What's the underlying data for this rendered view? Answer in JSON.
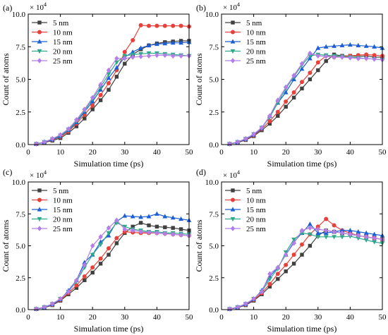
{
  "figure": {
    "multiplier_label": "× 10",
    "multiplier_exponent": "4"
  },
  "chart_data": [
    {
      "panel": "(a)",
      "type": "line",
      "xlabel": "Simulation time (ps)",
      "ylabel": "Count of atoms",
      "xlim": [
        0,
        50
      ],
      "ylim": [
        0,
        10
      ],
      "x_ticks": [
        0,
        10,
        20,
        30,
        40,
        50
      ],
      "y_ticks": [
        "0.0",
        "2.5",
        "5.0",
        "7.5",
        "10.0"
      ],
      "x": [
        2.5,
        5,
        7.5,
        10,
        12.5,
        15,
        17.5,
        20,
        22.5,
        25,
        27.5,
        30,
        32.5,
        35,
        37.5,
        40,
        42.5,
        45,
        47.5,
        50
      ],
      "legend_position": "upper-left",
      "series": [
        {
          "name": "5 nm",
          "color": "#404040",
          "marker": "square",
          "values": [
            0.05,
            0.15,
            0.3,
            0.5,
            0.9,
            1.4,
            2.0,
            2.7,
            3.4,
            4.2,
            5.2,
            6.2,
            6.9,
            7.3,
            7.6,
            7.75,
            7.85,
            7.9,
            7.95,
            7.95
          ]
        },
        {
          "name": "10 nm",
          "color": "#e8403a",
          "marker": "circle",
          "values": [
            0.05,
            0.17,
            0.35,
            0.6,
            1.0,
            1.6,
            2.3,
            3.0,
            3.8,
            4.7,
            5.7,
            7.1,
            8.0,
            9.15,
            9.1,
            9.1,
            9.1,
            9.1,
            9.1,
            9.05
          ]
        },
        {
          "name": "15 nm",
          "color": "#1c5fd4",
          "marker": "triangle-up",
          "values": [
            0.05,
            0.18,
            0.38,
            0.65,
            1.1,
            1.7,
            2.5,
            3.3,
            4.2,
            5.1,
            5.9,
            6.7,
            7.1,
            7.4,
            7.6,
            7.7,
            7.75,
            7.8,
            7.8,
            7.85
          ]
        },
        {
          "name": "20 nm",
          "color": "#2ea88a",
          "marker": "triangle-down",
          "values": [
            0.05,
            0.2,
            0.42,
            0.7,
            1.15,
            1.8,
            2.6,
            3.5,
            4.4,
            5.4,
            6.3,
            6.8,
            6.9,
            6.95,
            7.0,
            7.0,
            6.95,
            6.9,
            6.85,
            6.8
          ]
        },
        {
          "name": "25 nm",
          "color": "#b47ee6",
          "marker": "diamond",
          "values": [
            0.05,
            0.2,
            0.45,
            0.75,
            1.2,
            1.9,
            2.7,
            3.6,
            4.6,
            5.7,
            6.6,
            6.6,
            6.7,
            6.75,
            6.8,
            6.85,
            6.85,
            6.8,
            6.8,
            6.8
          ]
        }
      ]
    },
    {
      "panel": "(b)",
      "type": "line",
      "xlabel": "Simulation time (ps)",
      "ylabel": "Count of atoms",
      "xlim": [
        0,
        50
      ],
      "ylim": [
        0,
        10
      ],
      "x_ticks": [
        0,
        10,
        20,
        30,
        40,
        50
      ],
      "y_ticks": [
        "0.0",
        "2.5",
        "5.0",
        "7.5",
        "10.0"
      ],
      "x": [
        2.5,
        5,
        7.5,
        10,
        12.5,
        15,
        17.5,
        20,
        22.5,
        25,
        27.5,
        30,
        32.5,
        35,
        37.5,
        40,
        42.5,
        45,
        47.5,
        50
      ],
      "legend_position": "upper-left",
      "series": [
        {
          "name": "5 nm",
          "color": "#404040",
          "marker": "square",
          "values": [
            0.05,
            0.15,
            0.35,
            0.65,
            1.1,
            1.6,
            2.2,
            2.9,
            3.6,
            4.3,
            5.0,
            5.7,
            6.4,
            6.9,
            6.8,
            6.8,
            6.75,
            6.8,
            6.7,
            6.7
          ]
        },
        {
          "name": "10 nm",
          "color": "#e8403a",
          "marker": "circle",
          "values": [
            0.05,
            0.17,
            0.4,
            0.7,
            1.2,
            1.8,
            2.5,
            3.3,
            4.0,
            4.8,
            5.5,
            6.3,
            6.8,
            6.7,
            6.75,
            6.8,
            6.85,
            6.9,
            6.85,
            6.8
          ]
        },
        {
          "name": "15 nm",
          "color": "#1c5fd4",
          "marker": "triangle-up",
          "values": [
            0.05,
            0.18,
            0.42,
            0.75,
            1.25,
            2.2,
            3.2,
            4.0,
            5.0,
            5.8,
            6.6,
            7.4,
            7.5,
            7.55,
            7.6,
            7.65,
            7.6,
            7.55,
            7.5,
            7.4
          ]
        },
        {
          "name": "20 nm",
          "color": "#2ea88a",
          "marker": "triangle-down",
          "values": [
            0.05,
            0.2,
            0.45,
            0.8,
            1.3,
            2.1,
            3.2,
            4.3,
            5.2,
            6.1,
            6.8,
            6.9,
            6.85,
            6.8,
            6.75,
            6.7,
            6.65,
            6.6,
            6.55,
            6.5
          ]
        },
        {
          "name": "25 nm",
          "color": "#b47ee6",
          "marker": "diamond",
          "values": [
            0.05,
            0.2,
            0.45,
            0.8,
            1.3,
            2.2,
            3.4,
            4.4,
            5.3,
            6.2,
            7.0,
            6.8,
            6.75,
            6.7,
            6.7,
            6.65,
            6.6,
            6.6,
            6.55,
            6.5
          ]
        }
      ]
    },
    {
      "panel": "(c)",
      "type": "line",
      "xlabel": "Simulation time (ps)",
      "ylabel": "Count of atoms",
      "xlim": [
        0,
        50
      ],
      "ylim": [
        0,
        10
      ],
      "x_ticks": [
        0,
        10,
        20,
        30,
        40,
        50
      ],
      "y_ticks": [
        "0.0",
        "2.5",
        "5.0",
        "7.5",
        "10.0"
      ],
      "x": [
        2.5,
        5,
        7.5,
        10,
        12.5,
        15,
        17.5,
        20,
        22.5,
        25,
        27.5,
        30,
        32.5,
        35,
        37.5,
        40,
        42.5,
        45,
        47.5,
        50
      ],
      "legend_position": "upper-left",
      "series": [
        {
          "name": "5 nm",
          "color": "#404040",
          "marker": "square",
          "values": [
            0.05,
            0.15,
            0.35,
            0.7,
            1.2,
            1.7,
            2.3,
            2.9,
            3.6,
            4.3,
            5.2,
            6.0,
            6.5,
            6.8,
            6.6,
            6.5,
            6.45,
            6.4,
            6.3,
            6.2
          ]
        },
        {
          "name": "10 nm",
          "color": "#e8403a",
          "marker": "circle",
          "values": [
            0.05,
            0.17,
            0.4,
            0.75,
            1.3,
            1.9,
            2.6,
            3.3,
            4.0,
            4.8,
            5.6,
            6.1,
            6.05,
            6.0,
            6.0,
            6.0,
            5.95,
            5.9,
            5.85,
            5.8
          ]
        },
        {
          "name": "15 nm",
          "color": "#1c5fd4",
          "marker": "triangle-up",
          "values": [
            0.05,
            0.18,
            0.42,
            0.8,
            1.5,
            2.3,
            3.7,
            4.3,
            5.3,
            5.8,
            6.9,
            7.35,
            7.3,
            7.25,
            7.3,
            7.5,
            7.3,
            7.2,
            7.1,
            7.0
          ]
        },
        {
          "name": "20 nm",
          "color": "#2ea88a",
          "marker": "triangle-down",
          "values": [
            0.05,
            0.2,
            0.45,
            0.85,
            1.4,
            2.2,
            3.3,
            4.3,
            5.1,
            6.0,
            6.8,
            6.5,
            6.3,
            6.2,
            6.1,
            6.1,
            6.0,
            6.0,
            5.95,
            5.9
          ]
        },
        {
          "name": "25 nm",
          "color": "#b47ee6",
          "marker": "diamond",
          "values": [
            0.05,
            0.2,
            0.45,
            0.85,
            1.4,
            2.3,
            3.5,
            5.0,
            5.7,
            6.4,
            7.0,
            6.3,
            6.2,
            6.1,
            6.05,
            6.0,
            5.95,
            5.9,
            5.85,
            5.8
          ]
        }
      ]
    },
    {
      "panel": "(d)",
      "type": "line",
      "xlabel": "Simulation time (ps)",
      "ylabel": "Count of atoms",
      "xlim": [
        0,
        50
      ],
      "ylim": [
        0,
        10
      ],
      "x_ticks": [
        0,
        10,
        20,
        30,
        40,
        50
      ],
      "y_ticks": [
        "0.0",
        "2.5",
        "5.0",
        "7.5",
        "10.0"
      ],
      "x": [
        2.5,
        5,
        7.5,
        10,
        12.5,
        15,
        17.5,
        20,
        22.5,
        25,
        27.5,
        30,
        32.5,
        35,
        37.5,
        40,
        42.5,
        45,
        47.5,
        50
      ],
      "legend_position": "upper-left",
      "series": [
        {
          "name": "5 nm",
          "color": "#404040",
          "marker": "square",
          "values": [
            0.05,
            0.15,
            0.35,
            0.7,
            1.2,
            1.8,
            2.4,
            3.0,
            3.6,
            4.3,
            5.0,
            5.8,
            6.2,
            6.1,
            6.0,
            5.9,
            5.8,
            5.7,
            5.6,
            5.5
          ]
        },
        {
          "name": "10 nm",
          "color": "#e8403a",
          "marker": "circle",
          "values": [
            0.05,
            0.17,
            0.4,
            0.75,
            1.3,
            2.0,
            2.8,
            3.5,
            4.3,
            5.1,
            5.9,
            6.5,
            7.1,
            6.6,
            6.2,
            6.0,
            5.8,
            5.7,
            5.6,
            5.5
          ]
        },
        {
          "name": "15 nm",
          "color": "#1c5fd4",
          "marker": "triangle-up",
          "values": [
            0.05,
            0.18,
            0.42,
            0.8,
            1.5,
            2.6,
            3.3,
            4.3,
            5.3,
            6.0,
            6.7,
            6.0,
            6.0,
            6.1,
            6.2,
            6.2,
            6.1,
            6.0,
            5.9,
            5.8
          ]
        },
        {
          "name": "20 nm",
          "color": "#2ea88a",
          "marker": "triangle-down",
          "values": [
            0.05,
            0.2,
            0.45,
            0.85,
            1.4,
            2.4,
            3.2,
            4.5,
            5.5,
            6.0,
            5.9,
            5.7,
            5.7,
            5.7,
            5.7,
            5.75,
            5.6,
            5.45,
            5.3,
            5.2
          ]
        },
        {
          "name": "25 nm",
          "color": "#b47ee6",
          "marker": "diamond",
          "values": [
            0.05,
            0.2,
            0.45,
            0.85,
            1.4,
            2.8,
            3.3,
            4.3,
            5.2,
            6.2,
            6.4,
            6.3,
            6.2,
            6.1,
            6.0,
            5.9,
            5.8,
            5.7,
            5.6,
            5.5
          ]
        }
      ]
    }
  ]
}
